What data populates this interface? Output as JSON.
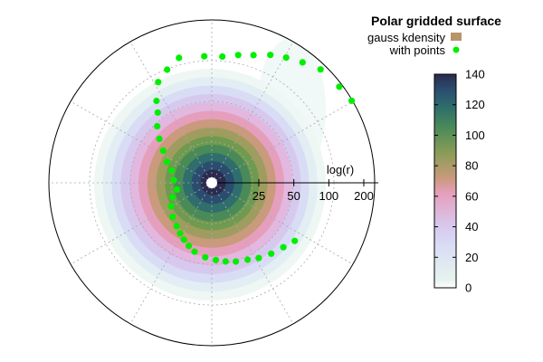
{
  "chart_data": {
    "type": "heatmap",
    "subtype": "polar",
    "title": "Polar gridded surface",
    "radial_axis": {
      "label": "log(r)",
      "scale": "log",
      "ticks": [
        25,
        50,
        100,
        200
      ]
    },
    "colorbar": {
      "min": 0,
      "max": 140,
      "ticks": [
        0,
        20,
        40,
        60,
        80,
        100,
        120,
        140
      ]
    },
    "grid": true,
    "legend": {
      "position": "top-right",
      "entries": [
        {
          "label": "gauss kdensity",
          "color": "#b8946a",
          "kind": "box"
        },
        {
          "label": "with points",
          "color": "#00ee00",
          "kind": "dot"
        }
      ]
    },
    "density_levels": [
      {
        "value": 5,
        "color": "#eef7f4"
      },
      {
        "value": 15,
        "color": "#e2eef3"
      },
      {
        "value": 28,
        "color": "#d9dcf5"
      },
      {
        "value": 40,
        "color": "#d7c9ee"
      },
      {
        "value": 52,
        "color": "#e2b8e0"
      },
      {
        "value": 62,
        "color": "#e59fbd"
      },
      {
        "value": 72,
        "color": "#c99a7b"
      },
      {
        "value": 82,
        "color": "#9f9c60"
      },
      {
        "value": 92,
        "color": "#6f9a4f"
      },
      {
        "value": 105,
        "color": "#4a8a58"
      },
      {
        "value": 118,
        "color": "#2f6e6c"
      },
      {
        "value": 130,
        "color": "#2a4d6f"
      },
      {
        "value": 138,
        "color": "#2c2a4e"
      }
    ],
    "points": [
      {
        "theta_deg": 30.4,
        "r": 1.28
      },
      {
        "theta_deg": 37.0,
        "r": 1.26
      },
      {
        "theta_deg": 46.2,
        "r": 1.24
      },
      {
        "theta_deg": 53.0,
        "r": 1.19
      },
      {
        "theta_deg": 59.3,
        "r": 1.15
      },
      {
        "theta_deg": 65.4,
        "r": 1.11
      },
      {
        "theta_deg": 71.9,
        "r": 1.06
      },
      {
        "theta_deg": 78.3,
        "r": 1.03
      },
      {
        "theta_deg": 85.2,
        "r": 1.0
      },
      {
        "theta_deg": 93.4,
        "r": 1.0
      },
      {
        "theta_deg": 104.7,
        "r": 1.02
      },
      {
        "theta_deg": 111.5,
        "r": 0.96
      },
      {
        "theta_deg": 118.0,
        "r": 0.9
      },
      {
        "theta_deg": 124.0,
        "r": 0.78
      },
      {
        "theta_deg": 127.5,
        "r": 0.7
      },
      {
        "theta_deg": 134.0,
        "r": 0.62
      },
      {
        "theta_deg": 140.0,
        "r": 0.54
      },
      {
        "theta_deg": 146.5,
        "r": 0.46
      },
      {
        "theta_deg": 155.0,
        "r": 0.39
      },
      {
        "theta_deg": 163.0,
        "r": 0.33
      },
      {
        "theta_deg": 176.0,
        "r": 0.3
      },
      {
        "theta_deg": 191.0,
        "r": 0.28
      },
      {
        "theta_deg": 200.0,
        "r": 0.33
      },
      {
        "theta_deg": 210.0,
        "r": 0.37
      },
      {
        "theta_deg": 221.0,
        "r": 0.41
      },
      {
        "theta_deg": 231.0,
        "r": 0.44
      },
      {
        "theta_deg": 238.0,
        "r": 0.47
      },
      {
        "theta_deg": 244.0,
        "r": 0.5
      },
      {
        "theta_deg": 250.0,
        "r": 0.53
      },
      {
        "theta_deg": 256.0,
        "r": 0.56
      },
      {
        "theta_deg": 265.0,
        "r": 0.59
      },
      {
        "theta_deg": 273.0,
        "r": 0.61
      },
      {
        "theta_deg": 280.0,
        "r": 0.63
      },
      {
        "theta_deg": 287.0,
        "r": 0.65
      },
      {
        "theta_deg": 295.0,
        "r": 0.67
      },
      {
        "theta_deg": 302.0,
        "r": 0.7
      },
      {
        "theta_deg": 310.0,
        "r": 0.73
      },
      {
        "theta_deg": 318.0,
        "r": 0.76
      },
      {
        "theta_deg": 325.0,
        "r": 0.8
      }
    ]
  }
}
